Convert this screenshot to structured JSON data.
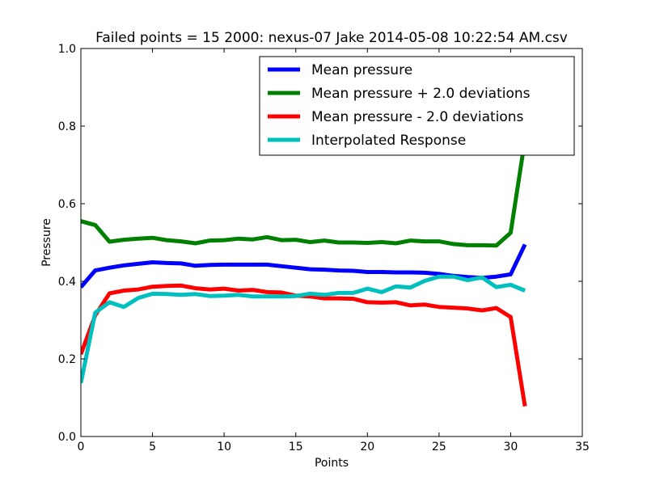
{
  "chart_data": {
    "type": "line",
    "title": "Failed points = 15 2000: nexus-07 Jake 2014-05-08 10:22:54 AM.csv",
    "xlabel": "Points",
    "ylabel": "Pressure",
    "xlim": [
      0,
      35
    ],
    "ylim": [
      0.0,
      1.0
    ],
    "xticks": [
      0,
      5,
      10,
      15,
      20,
      25,
      30,
      35
    ],
    "yticks": [
      0.0,
      0.2,
      0.4,
      0.6,
      0.8,
      1.0
    ],
    "xtick_labels": [
      "0",
      "5",
      "10",
      "15",
      "20",
      "25",
      "30",
      "35"
    ],
    "ytick_labels": [
      "0.0",
      "0.2",
      "0.4",
      "0.6",
      "0.8",
      "1.0"
    ],
    "grid": false,
    "legend_position": "top-right",
    "x": [
      0,
      1,
      2,
      3,
      4,
      5,
      6,
      7,
      8,
      9,
      10,
      11,
      12,
      13,
      14,
      15,
      16,
      17,
      18,
      19,
      20,
      21,
      22,
      23,
      24,
      25,
      26,
      27,
      28,
      29,
      30,
      31
    ],
    "series": [
      {
        "name": "Mean pressure",
        "color": "#0000ff",
        "values": [
          0.385,
          0.428,
          0.435,
          0.441,
          0.445,
          0.449,
          0.447,
          0.446,
          0.44,
          0.442,
          0.443,
          0.443,
          0.443,
          0.443,
          0.439,
          0.435,
          0.431,
          0.43,
          0.428,
          0.427,
          0.424,
          0.424,
          0.423,
          0.423,
          0.422,
          0.419,
          0.414,
          0.411,
          0.409,
          0.412,
          0.418,
          0.495
        ]
      },
      {
        "name": "Mean pressure + 2.0 deviations",
        "color": "#008000",
        "values": [
          0.555,
          0.545,
          0.502,
          0.507,
          0.51,
          0.512,
          0.506,
          0.503,
          0.498,
          0.505,
          0.506,
          0.51,
          0.508,
          0.514,
          0.506,
          0.507,
          0.501,
          0.505,
          0.5,
          0.5,
          0.499,
          0.501,
          0.498,
          0.505,
          0.503,
          0.503,
          0.496,
          0.493,
          0.493,
          0.492,
          0.525,
          0.765
        ]
      },
      {
        "name": "Mean pressure - 2.0 deviations",
        "color": "#ff0000",
        "values": [
          0.212,
          0.312,
          0.369,
          0.376,
          0.379,
          0.386,
          0.388,
          0.389,
          0.382,
          0.379,
          0.381,
          0.376,
          0.378,
          0.372,
          0.371,
          0.363,
          0.361,
          0.356,
          0.356,
          0.355,
          0.346,
          0.345,
          0.346,
          0.338,
          0.34,
          0.334,
          0.332,
          0.33,
          0.325,
          0.331,
          0.308,
          0.078
        ]
      },
      {
        "name": "Interpolated Response",
        "color": "#00bfbf",
        "values": [
          0.138,
          0.319,
          0.346,
          0.334,
          0.357,
          0.368,
          0.367,
          0.365,
          0.367,
          0.362,
          0.363,
          0.365,
          0.361,
          0.361,
          0.361,
          0.362,
          0.368,
          0.365,
          0.37,
          0.37,
          0.381,
          0.372,
          0.387,
          0.384,
          0.401,
          0.412,
          0.412,
          0.403,
          0.41,
          0.385,
          0.391,
          0.376
        ]
      }
    ]
  }
}
